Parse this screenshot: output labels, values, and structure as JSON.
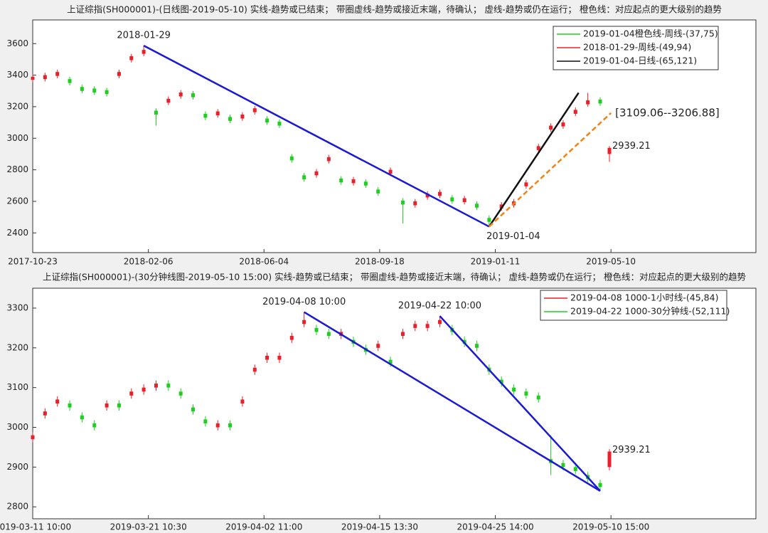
{
  "chart_data": [
    {
      "type": "candlestick",
      "title": "上证综指(SH000001)-(日线图-2019-05-10)  实线-趋势或已结束；  带圈虚线-趋势或接近末端，待确认；  虚线-趋势或仍在运行；  橙色线：对应起点的更大级别的趋势",
      "x": [
        0,
        8,
        16,
        24,
        32,
        40,
        48,
        56,
        64,
        72,
        80,
        88,
        96,
        104,
        112,
        120,
        128,
        136,
        144,
        152,
        160,
        168,
        176,
        184,
        192,
        200,
        208,
        216,
        224,
        232,
        240,
        248,
        256,
        264,
        272,
        280,
        288,
        296,
        304,
        312,
        320,
        328,
        336,
        344,
        352,
        360,
        368,
        374
      ],
      "open": [
        3370,
        3375,
        3395,
        3375,
        3325,
        3315,
        3305,
        3395,
        3495,
        3535,
        3175,
        3225,
        3265,
        3285,
        3155,
        3145,
        3135,
        3125,
        3165,
        3125,
        3105,
        2885,
        2765,
        2765,
        2855,
        2745,
        2715,
        2725,
        2675,
        2775,
        2605,
        2575,
        2625,
        2635,
        2625,
        2595,
        2585,
        2495,
        2555,
        2575,
        2695,
        2925,
        3055,
        3075,
        3155,
        3215,
        3245,
        2900
      ],
      "high": [
        3405,
        3415,
        3435,
        3390,
        3340,
        3330,
        3320,
        3435,
        3535,
        3587,
        3190,
        3265,
        3305,
        3300,
        3170,
        3185,
        3150,
        3165,
        3205,
        3140,
        3120,
        2900,
        2780,
        2805,
        2895,
        2760,
        2755,
        2740,
        2690,
        2815,
        2620,
        2615,
        2665,
        2675,
        2640,
        2635,
        2600,
        2510,
        2595,
        2615,
        2735,
        2965,
        3095,
        3115,
        3195,
        3288,
        3260,
        2950
      ],
      "low": [
        3355,
        3360,
        3380,
        3335,
        3285,
        3275,
        3265,
        3380,
        3480,
        3520,
        3080,
        3210,
        3250,
        3245,
        3115,
        3130,
        3095,
        3110,
        3150,
        3085,
        3065,
        2845,
        2725,
        2750,
        2840,
        2705,
        2700,
        2685,
        2635,
        2760,
        2460,
        2560,
        2610,
        2620,
        2585,
        2580,
        2545,
        2440,
        2540,
        2560,
        2680,
        2910,
        3040,
        3060,
        3140,
        3200,
        3205,
        2850
      ],
      "close": [
        3390,
        3400,
        3420,
        3350,
        3300,
        3290,
        3280,
        3420,
        3520,
        3560,
        3150,
        3250,
        3290,
        3260,
        3130,
        3170,
        3110,
        3150,
        3190,
        3100,
        3080,
        2860,
        2740,
        2790,
        2880,
        2720,
        2740,
        2700,
        2650,
        2800,
        2580,
        2600,
        2650,
        2660,
        2600,
        2620,
        2560,
        2470,
        2580,
        2600,
        2720,
        2950,
        3080,
        3100,
        3180,
        3240,
        3220,
        2939.21
      ],
      "up_color": "#e8202a",
      "down_color": "#1fcf1f",
      "xlim": [
        0,
        469
      ],
      "xticks": [
        {
          "value": 0,
          "label": "2017-10-23"
        },
        {
          "value": 75,
          "label": "2018-02-06"
        },
        {
          "value": 150,
          "label": "2018-06-04"
        },
        {
          "value": 225,
          "label": "2018-09-18"
        },
        {
          "value": 300,
          "label": "2019-01-11"
        },
        {
          "value": 375,
          "label": "2019-05-10"
        }
      ],
      "ylim": [
        2275,
        3750
      ],
      "yticks": [
        2400,
        2600,
        2800,
        3000,
        3200,
        3400,
        3600
      ],
      "trend_lines": [
        {
          "color": "#1a1ad6",
          "dash": false,
          "x": [
            72,
            296
          ],
          "y": [
            3587,
            2440
          ],
          "start_label": "2018-01-29",
          "end_label": "2019-01-04",
          "end_label_color": "#111111"
        },
        {
          "color": "#111111",
          "dash": false,
          "x": [
            296,
            354
          ],
          "y": [
            2440,
            3288
          ]
        },
        {
          "color": "#f0841c",
          "dash": true,
          "x": [
            296,
            375
          ],
          "y": [
            2440,
            3160
          ],
          "end_label": "[3109.06--3206.88]",
          "end_label_color": "#f0841c"
        }
      ],
      "legend": [
        {
          "name": "2019-01-04橙色线-周线-(37,75)",
          "color": "#1fcf1f"
        },
        {
          "name": "2018-01-29-周线-(49,94)",
          "color": "#e8202a"
        },
        {
          "name": "2019-01-04-日线-(65,121)",
          "color": "#111111"
        }
      ],
      "legend_corner": "upper right"
    },
    {
      "type": "candlestick",
      "title": "上证综指(SH000001)-(30分钟线图-2019-05-10 15:00)  实线-趋势或已结束；  带圈虚线-趋势或接近末端，待确认；  虚线-趋势或仍在运行；  橙色线：对应起点的更大级别的趋势",
      "x": [
        0,
        8,
        16,
        24,
        32,
        40,
        48,
        56,
        64,
        72,
        80,
        88,
        96,
        104,
        112,
        120,
        128,
        136,
        144,
        152,
        160,
        168,
        176,
        184,
        192,
        200,
        208,
        216,
        224,
        232,
        240,
        248,
        256,
        264,
        272,
        280,
        288,
        296,
        304,
        312,
        320,
        328,
        336,
        344,
        352,
        360,
        368,
        374
      ],
      "open": [
        2970,
        3030,
        3060,
        3060,
        3030,
        3010,
        3050,
        3060,
        3080,
        3090,
        3100,
        3110,
        3090,
        3050,
        3020,
        3000,
        3010,
        3060,
        3140,
        3170,
        3170,
        3220,
        3260,
        3250,
        3240,
        3230,
        3220,
        3200,
        3200,
        3170,
        3230,
        3250,
        3250,
        3260,
        3250,
        3220,
        3210,
        3150,
        3120,
        3100,
        3090,
        3080,
        2920,
        2910,
        2900,
        2880,
        2860,
        2900
      ],
      "high": [
        2988,
        3048,
        3078,
        3068,
        3038,
        3018,
        3068,
        3068,
        3098,
        3108,
        3118,
        3118,
        3098,
        3058,
        3028,
        3018,
        3018,
        3078,
        3158,
        3188,
        3188,
        3238,
        3290,
        3258,
        3248,
        3248,
        3228,
        3208,
        3218,
        3178,
        3248,
        3268,
        3268,
        3280,
        3258,
        3228,
        3218,
        3158,
        3128,
        3108,
        3098,
        3088,
        2980,
        2918,
        2908,
        2888,
        2868,
        2945
      ],
      "low": [
        2962,
        3022,
        3052,
        3042,
        3012,
        2992,
        3042,
        3042,
        3072,
        3082,
        3092,
        3092,
        3072,
        3032,
        3002,
        2992,
        2992,
        3052,
        3132,
        3162,
        3162,
        3212,
        3252,
        3232,
        3222,
        3222,
        3202,
        3182,
        3192,
        3152,
        3222,
        3242,
        3242,
        3252,
        3232,
        3202,
        3192,
        3132,
        3102,
        3082,
        3072,
        3062,
        2880,
        2892,
        2882,
        2862,
        2840,
        2892
      ],
      "close": [
        2980,
        3040,
        3070,
        3050,
        3020,
        3000,
        3060,
        3050,
        3090,
        3100,
        3110,
        3100,
        3080,
        3040,
        3010,
        3010,
        3000,
        3070,
        3150,
        3180,
        3180,
        3230,
        3270,
        3240,
        3230,
        3240,
        3210,
        3190,
        3210,
        3160,
        3240,
        3260,
        3260,
        3270,
        3240,
        3210,
        3200,
        3140,
        3110,
        3090,
        3080,
        3070,
        2910,
        2900,
        2890,
        2870,
        2850,
        2939.21
      ],
      "up_color": "#e8202a",
      "down_color": "#1fcf1f",
      "xlim": [
        0,
        469
      ],
      "xticks": [
        {
          "value": 0,
          "label": "2019-03-11 10:00"
        },
        {
          "value": 75,
          "label": "2019-03-21 10:30"
        },
        {
          "value": 150,
          "label": "2019-04-02 11:00"
        },
        {
          "value": 225,
          "label": "2019-04-15 13:30"
        },
        {
          "value": 300,
          "label": "2019-04-25 14:00"
        },
        {
          "value": 375,
          "label": "2019-05-10 15:00"
        }
      ],
      "ylim": [
        2770,
        3350
      ],
      "yticks": [
        2800,
        2900,
        3000,
        3100,
        3200,
        3300
      ],
      "trend_lines": [
        {
          "color": "#1a1ad6",
          "dash": false,
          "x": [
            176,
            368
          ],
          "y": [
            3290,
            2840
          ],
          "start_label": "2019-04-08 10:00"
        },
        {
          "color": "#1a1ad6",
          "dash": false,
          "x": [
            264,
            368
          ],
          "y": [
            3280,
            2840
          ],
          "start_label": "2019-04-22 10:00"
        }
      ],
      "legend": [
        {
          "name": "2019-04-08 1000-1小时线-(45,84)",
          "color": "#e8202a"
        },
        {
          "name": "2019-04-22 1000-30分钟线-(52,111)",
          "color": "#1fcf1f"
        }
      ],
      "legend_corner": "upper right"
    }
  ]
}
